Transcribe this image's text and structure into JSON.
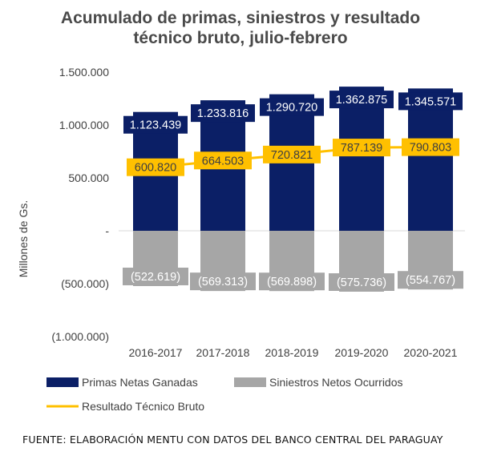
{
  "chart_data": {
    "type": "bar",
    "title_line1": "Acumulado de primas, siniestros y resultado",
    "title_line2": "técnico bruto, julio-febrero",
    "ylabel": "Millones de Gs.",
    "xlabel": "",
    "ylim": [
      -1000000,
      1500000
    ],
    "yticks": [
      {
        "value": 1500000,
        "label": "1.500.000"
      },
      {
        "value": 1000000,
        "label": "1.000.000"
      },
      {
        "value": 500000,
        "label": "500.000"
      },
      {
        "value": 0,
        "label": "-"
      },
      {
        "value": -500000,
        "label": "(500.000)"
      },
      {
        "value": -1000000,
        "label": "(1.000.000)"
      }
    ],
    "categories": [
      "2016-2017",
      "2017-2018",
      "2018-2019",
      "2019-2020",
      "2020-2021"
    ],
    "series": [
      {
        "name": "Primas Netas Ganadas",
        "kind": "bar",
        "color": "#0b1f66",
        "values": [
          1123439,
          1233816,
          1290720,
          1362875,
          1345571
        ],
        "labels": [
          "1.123.439",
          "1.233.816",
          "1.290.720",
          "1.362.875",
          "1.345.571"
        ]
      },
      {
        "name": "Siniestros Netos Ocurridos",
        "kind": "bar",
        "color": "#a6a6a6",
        "values": [
          -522619,
          -569313,
          -569898,
          -575736,
          -554767
        ],
        "labels": [
          "(522.619)",
          "(569.313)",
          "(569.898)",
          "(575.736)",
          "(554.767)"
        ]
      },
      {
        "name": "Resultado Técnico Bruto",
        "kind": "line",
        "color": "#ffc000",
        "values": [
          600820,
          664503,
          720821,
          787139,
          790803
        ],
        "labels": [
          "600.820",
          "664.503",
          "720.821",
          "787.139",
          "790.803"
        ]
      }
    ],
    "grid": false,
    "legend_position": "bottom"
  },
  "source": {
    "text": "FUENTE: ELABORACIÓN MENTU CON DATOS DEL BANCO CENTRAL DEL PARAGUAY"
  }
}
